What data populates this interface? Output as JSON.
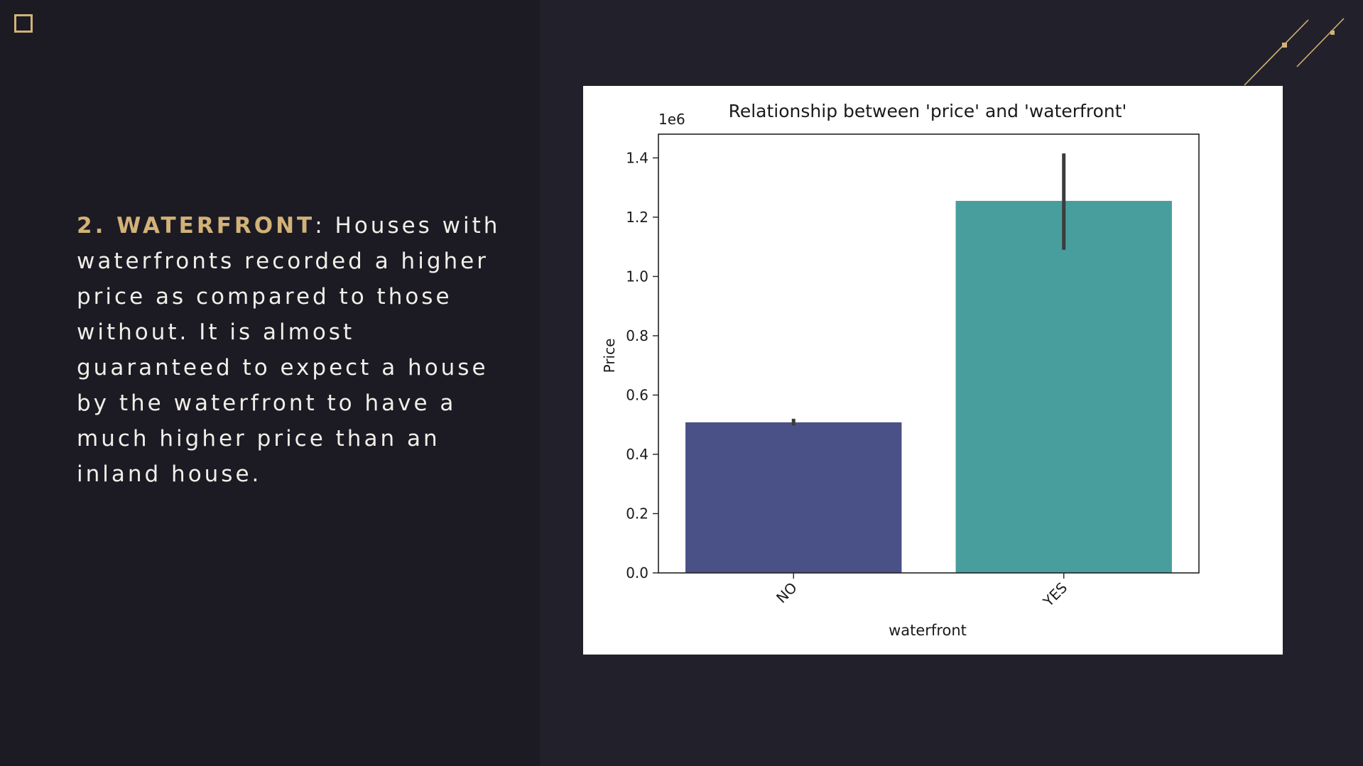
{
  "slide": {
    "lead": "2. WATERFRONT",
    "body": ": Houses with waterfronts recorded a higher price as compared to those without. It is almost guaranteed to expect a house by the waterfront to have a much higher price than an inland house."
  },
  "chart_data": {
    "type": "bar",
    "title": "Relationship between 'price' and 'waterfront'",
    "xlabel": "waterfront",
    "ylabel": "Price",
    "y_multiplier_label": "1e6",
    "categories": [
      "NO",
      "YES"
    ],
    "values": [
      0.508,
      1.255
    ],
    "error_bars": [
      [
        0.497,
        0.52
      ],
      [
        1.09,
        1.415
      ]
    ],
    "bar_colors": [
      "#4a5187",
      "#489e9d"
    ],
    "ylim": [
      0,
      1.48
    ],
    "yticks": [
      0.0,
      0.2,
      0.4,
      0.6,
      0.8,
      1.0,
      1.2,
      1.4
    ],
    "ytick_labels": [
      "0.0",
      "0.2",
      "0.4",
      "0.6",
      "0.8",
      "1.0",
      "1.2",
      "1.4"
    ],
    "grid": false
  },
  "colors": {
    "accent": "#d2b278",
    "text": "#f1efe8",
    "left_background": "#1c1b24",
    "right_background": "#22212b"
  },
  "icons": {
    "corner": "square-outline-icon",
    "decoration": "diagonal-lines-icon"
  }
}
